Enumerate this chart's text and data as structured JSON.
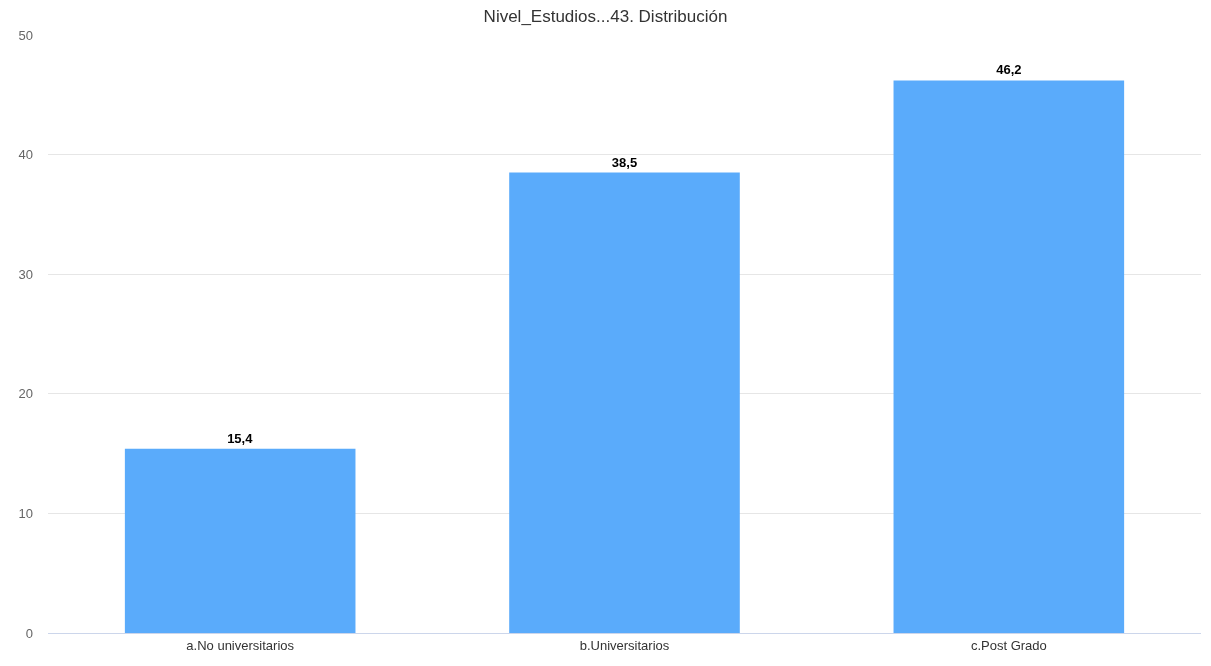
{
  "chart_data": {
    "type": "bar",
    "title": "Nivel_Estudios...43. Distribución",
    "categories": [
      "a.No universitarios",
      "b.Universitarios",
      "c.Post Grado"
    ],
    "values": [
      15.4,
      38.5,
      46.2
    ],
    "value_labels": [
      "15,4",
      "38,5",
      "46,2"
    ],
    "color": "#5aabfb",
    "ylim": [
      0,
      50
    ],
    "yticks": [
      0,
      10,
      20,
      30,
      40,
      50
    ],
    "grid": "y",
    "legend": false
  }
}
